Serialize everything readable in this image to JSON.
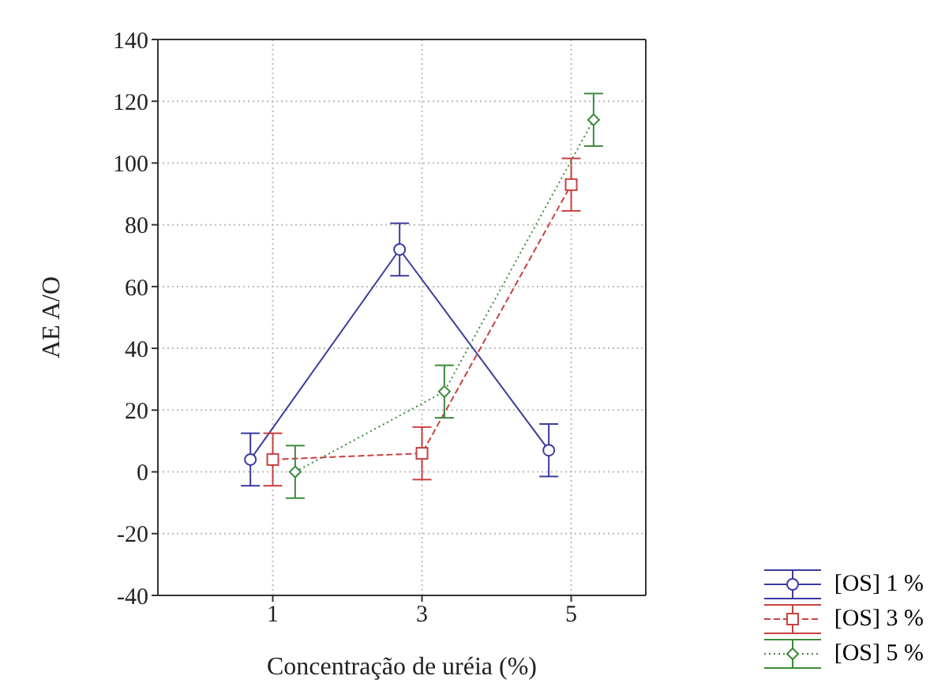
{
  "chart_data": {
    "type": "line",
    "xlabel": "Concentração de uréia (%)",
    "ylabel": "AE A/O",
    "categories": [
      "1",
      "3",
      "5"
    ],
    "series": [
      {
        "name": "[OS] 1 %",
        "color": "#3a3aa0",
        "values": [
          4,
          72,
          7
        ],
        "errors": [
          8.5,
          8.5,
          8.5
        ],
        "marker": "circle",
        "line_style": "solid"
      },
      {
        "name": "[OS] 3 %",
        "color": "#c84040",
        "values": [
          4,
          6,
          93
        ],
        "errors": [
          8.5,
          8.5,
          8.5
        ],
        "marker": "square",
        "line_style": "dashed"
      },
      {
        "name": "[OS] 5 %",
        "color": "#3a8a3a",
        "values": [
          0,
          26,
          114
        ],
        "errors": [
          8.5,
          8.5,
          8.5
        ],
        "marker": "diamond",
        "line_style": "dotted"
      }
    ],
    "ylim": [
      -40,
      140
    ],
    "yticks": [
      -40,
      -20,
      0,
      20,
      40,
      60,
      80,
      100,
      120,
      140
    ],
    "grid": true,
    "legend": "bottom right"
  }
}
